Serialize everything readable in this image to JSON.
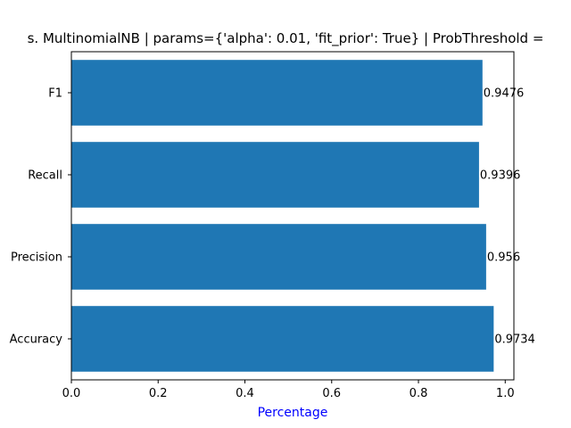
{
  "chart_data": {
    "type": "bar",
    "orientation": "horizontal",
    "title": "s. MultinomialNB | params={'alpha': 0.01, 'fit_prior': True} | ProbThreshold =",
    "xlabel": "Percentage",
    "ylabel": "",
    "categories": [
      "Accuracy",
      "Precision",
      "Recall",
      "F1"
    ],
    "values": [
      0.9734,
      0.956,
      0.9396,
      0.9476
    ],
    "value_labels": [
      "0.9734",
      "0.956",
      "0.9396",
      "0.9476"
    ],
    "xlim": [
      0,
      1.02
    ],
    "xticks": [
      0.0,
      0.2,
      0.4,
      0.6,
      0.8,
      1.0
    ],
    "xtick_labels": [
      "0.0",
      "0.2",
      "0.4",
      "0.6",
      "0.8",
      "1.0"
    ],
    "grid": false,
    "colors": {
      "bar": "#1f77b4",
      "xlabel": "#0000ff"
    }
  }
}
